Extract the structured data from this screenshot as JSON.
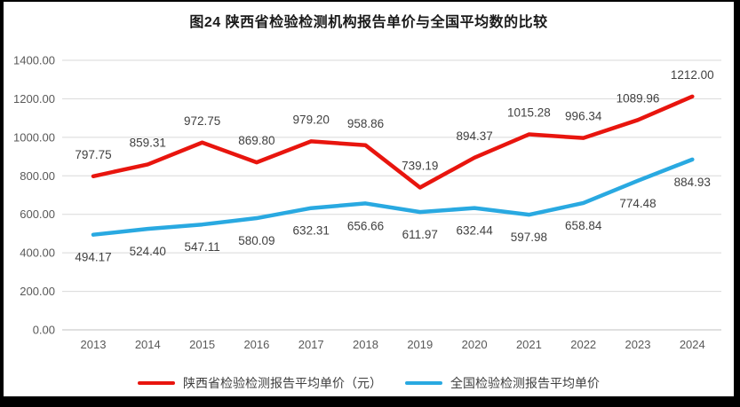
{
  "frame": {
    "border_color": "#000000",
    "background": "#ffffff"
  },
  "chart_data": {
    "type": "line",
    "title": "图24 陕西省检验检测机构报告单价与全国平均数的比较",
    "categories": [
      "2013",
      "2014",
      "2015",
      "2016",
      "2017",
      "2018",
      "2019",
      "2020",
      "2021",
      "2022",
      "2023",
      "2024"
    ],
    "series": [
      {
        "id": "shaanxi",
        "name": "陕西省检验检测报告平均单价（元）",
        "color": "#e8150e",
        "label_position": "above",
        "values": [
          797.75,
          859.31,
          972.75,
          869.8,
          979.2,
          958.86,
          739.19,
          894.37,
          1015.28,
          996.34,
          1089.96,
          1212.0
        ]
      },
      {
        "id": "national",
        "name": "全国检验检测报告平均单价",
        "color": "#29a9e1",
        "label_position": "below",
        "values": [
          494.17,
          524.4,
          547.11,
          580.09,
          632.31,
          656.66,
          611.97,
          632.44,
          597.98,
          658.84,
          774.48,
          884.93
        ]
      }
    ],
    "xlabel": "",
    "ylabel": "",
    "ylim": [
      0,
      1400
    ],
    "ytick_step": 200,
    "value_decimals": 2,
    "grid": "horizontal",
    "legend_position": "bottom",
    "colors": {
      "grid": "#d9d9d9",
      "axis": "#c0c0c0",
      "tick_label": "#595959",
      "data_label": "#404040",
      "title": "#1a1a1a"
    }
  }
}
